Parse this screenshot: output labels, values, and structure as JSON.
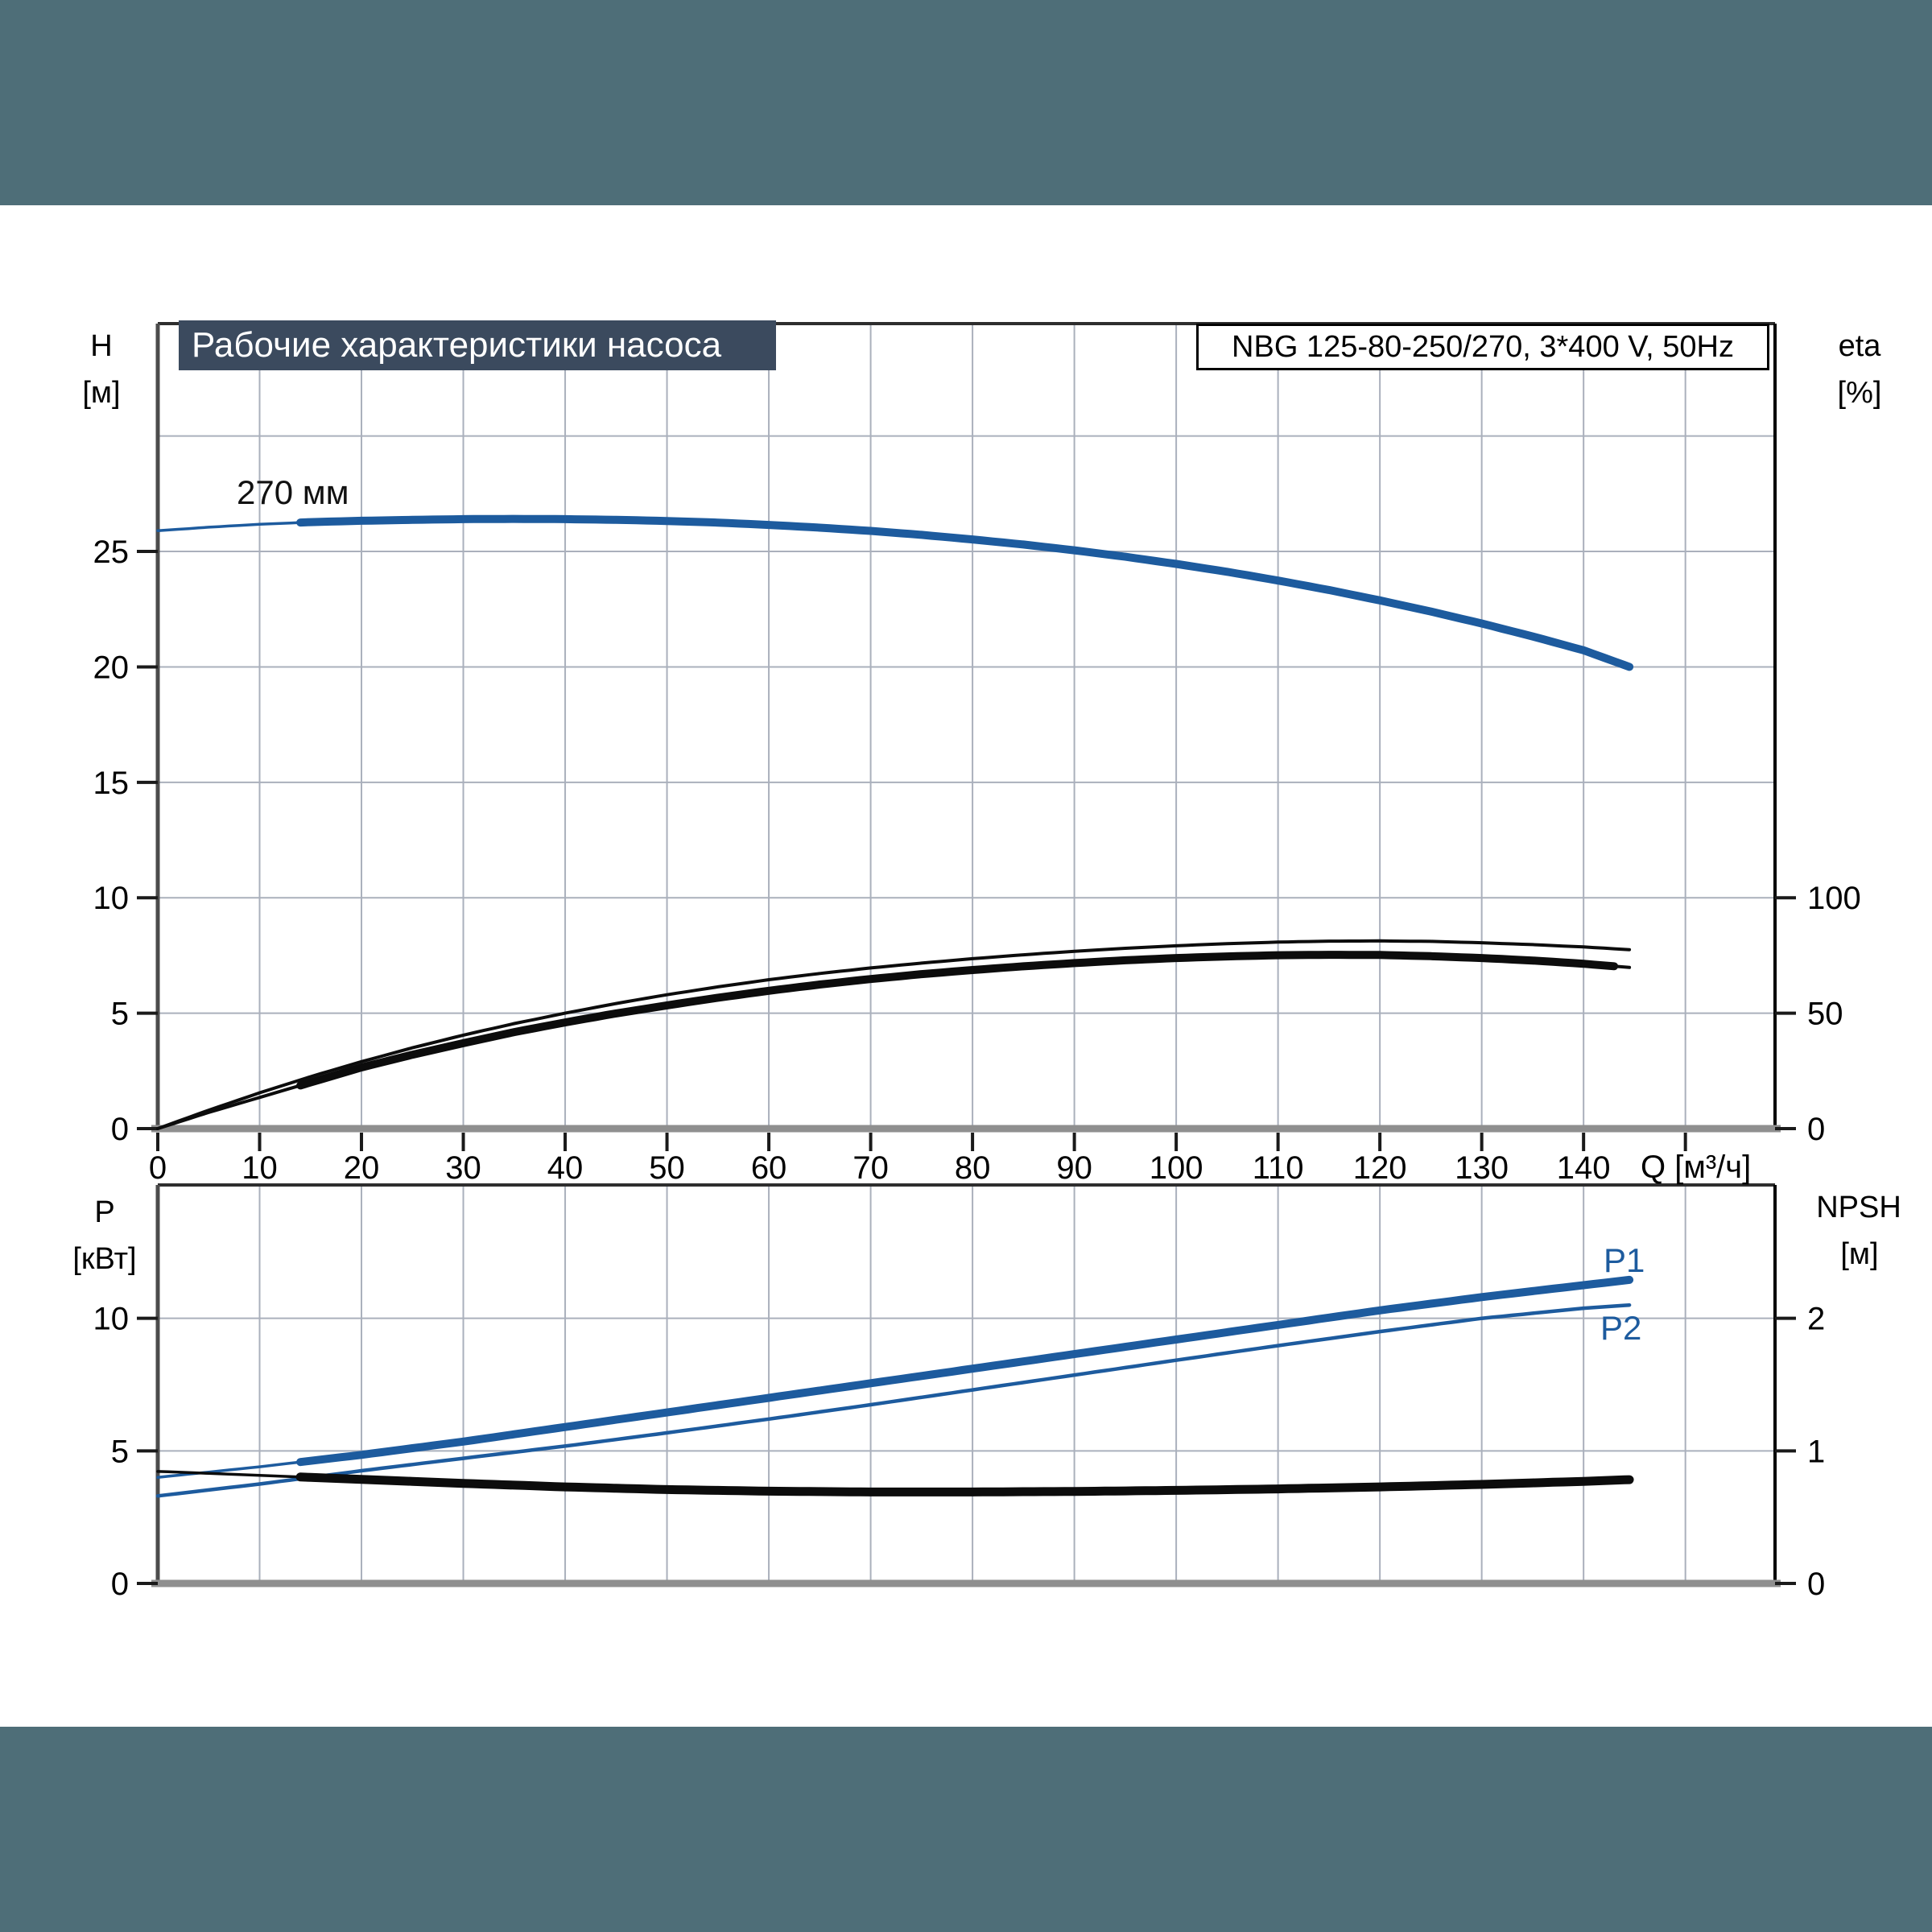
{
  "title_bar": {
    "text": "Рабочие характеристики насоса"
  },
  "pump_box": {
    "text": "NBG 125-80-250/270, 3*400 V, 50Hz"
  },
  "colors": {
    "curve_blue": "#1d5b9e",
    "curve_black": "#0c0c0c",
    "grid": "#aab0bc",
    "teal_bar": "#4e6e78",
    "title_bg": "#3b4a5e"
  },
  "chart_data": [
    {
      "type": "line",
      "title": "Pump head and efficiency vs flow",
      "x_axis": {
        "label": "Q [м³/ч]",
        "tick_labels": [
          0,
          10,
          20,
          30,
          40,
          50,
          60,
          70,
          80,
          90,
          100,
          110,
          120,
          130,
          140
        ],
        "tick_marks": [
          0,
          10,
          20,
          30,
          40,
          50,
          60,
          70,
          80,
          90,
          100,
          110,
          120,
          130,
          140,
          150
        ],
        "grid": [
          10,
          20,
          30,
          40,
          50,
          60,
          70,
          80,
          90,
          100,
          110,
          120,
          130,
          140,
          150
        ],
        "max_displayed": 158.8,
        "show_labels": true
      },
      "y_left": {
        "label": "H",
        "unit": "[м]",
        "tick_labels": [
          0,
          5,
          10,
          15,
          20,
          25
        ],
        "grid": [
          5,
          10,
          15,
          20,
          25,
          30
        ],
        "max_displayed": 34.87
      },
      "y_right": {
        "label": "eta",
        "unit": "[%]",
        "tick_labels": [
          0,
          50,
          100
        ],
        "max_displayed": 348.7
      },
      "annotations": [
        {
          "text": "270 мм"
        }
      ],
      "series": [
        {
          "name": "H 270 мм",
          "axis": "left",
          "color": "#1d5b9e",
          "width_thin": 3.5,
          "width_thick": 10,
          "thick_range": [
            13.5,
            144.5
          ],
          "points": [
            [
              0,
              25.9
            ],
            [
              5,
              26.05
            ],
            [
              10,
              26.18
            ],
            [
              15,
              26.27
            ],
            [
              20,
              26.33
            ],
            [
              25,
              26.37
            ],
            [
              30,
              26.4
            ],
            [
              35,
              26.41
            ],
            [
              40,
              26.4
            ],
            [
              45,
              26.37
            ],
            [
              50,
              26.32
            ],
            [
              55,
              26.25
            ],
            [
              60,
              26.15
            ],
            [
              65,
              26.03
            ],
            [
              70,
              25.89
            ],
            [
              75,
              25.72
            ],
            [
              80,
              25.52
            ],
            [
              85,
              25.3
            ],
            [
              90,
              25.05
            ],
            [
              95,
              24.77
            ],
            [
              100,
              24.46
            ],
            [
              105,
              24.12
            ],
            [
              110,
              23.74
            ],
            [
              115,
              23.33
            ],
            [
              120,
              22.88
            ],
            [
              125,
              22.4
            ],
            [
              130,
              21.88
            ],
            [
              135,
              21.32
            ],
            [
              140,
              20.72
            ],
            [
              144.5,
              20.0
            ]
          ]
        },
        {
          "name": "eta upper",
          "axis": "right",
          "color": "#0c0c0c",
          "width_thin": 4,
          "width_thick": 4,
          "points": [
            [
              0,
              0
            ],
            [
              5,
              8
            ],
            [
              10,
              15.5
            ],
            [
              15,
              22.5
            ],
            [
              20,
              29
            ],
            [
              25,
              35
            ],
            [
              30,
              40.5
            ],
            [
              35,
              45.5
            ],
            [
              40,
              50
            ],
            [
              45,
              54.2
            ],
            [
              50,
              58
            ],
            [
              55,
              61.4
            ],
            [
              60,
              64.5
            ],
            [
              65,
              67.2
            ],
            [
              70,
              69.6
            ],
            [
              75,
              71.7
            ],
            [
              80,
              73.6
            ],
            [
              85,
              75.3
            ],
            [
              90,
              76.8
            ],
            [
              95,
              78.1
            ],
            [
              100,
              79.2
            ],
            [
              105,
              80.1
            ],
            [
              110,
              80.8
            ],
            [
              115,
              81.2
            ],
            [
              120,
              81.3
            ],
            [
              125,
              81.1
            ],
            [
              130,
              80.5
            ],
            [
              135,
              79.7
            ],
            [
              140,
              78.7
            ],
            [
              144.5,
              77.5
            ]
          ]
        },
        {
          "name": "eta lower",
          "axis": "right",
          "color": "#0c0c0c",
          "width_thin": 4,
          "width_thick": 10,
          "thick_range": [
            14,
            143.5
          ],
          "points": [
            [
              0,
              0
            ],
            [
              5,
              7
            ],
            [
              10,
              13.5
            ],
            [
              15,
              20
            ],
            [
              20,
              26.5
            ],
            [
              25,
              32
            ],
            [
              30,
              37
            ],
            [
              35,
              41.8
            ],
            [
              40,
              46
            ],
            [
              45,
              49.9
            ],
            [
              50,
              53.4
            ],
            [
              55,
              56.7
            ],
            [
              60,
              59.7
            ],
            [
              65,
              62.4
            ],
            [
              70,
              64.8
            ],
            [
              75,
              66.9
            ],
            [
              80,
              68.7
            ],
            [
              85,
              70.3
            ],
            [
              90,
              71.7
            ],
            [
              95,
              72.9
            ],
            [
              100,
              73.9
            ],
            [
              105,
              74.6
            ],
            [
              110,
              75.1
            ],
            [
              115,
              75.3
            ],
            [
              120,
              75.2
            ],
            [
              125,
              74.7
            ],
            [
              130,
              73.9
            ],
            [
              135,
              72.8
            ],
            [
              140,
              71.4
            ],
            [
              144.5,
              69.8
            ]
          ]
        }
      ]
    },
    {
      "type": "line",
      "title": "Power and NPSH vs flow",
      "x_axis": {
        "label": "",
        "tick_labels": [],
        "tick_marks": [],
        "grid": [
          10,
          20,
          30,
          40,
          50,
          60,
          70,
          80,
          90,
          100,
          110,
          120,
          130,
          140,
          150
        ],
        "max_displayed": 158.8,
        "show_labels": false
      },
      "y_left": {
        "label": "P",
        "unit": "[кВт]",
        "tick_labels": [
          0,
          5,
          10
        ],
        "grid": [
          5,
          10
        ],
        "max_displayed": 15.03
      },
      "y_right": {
        "label": "NPSH",
        "unit": "[м]",
        "tick_labels": [
          0,
          1,
          2
        ],
        "max_displayed": 3.006
      },
      "annotations": [
        {
          "text": "P1"
        },
        {
          "text": "P2"
        }
      ],
      "series": [
        {
          "name": "P1",
          "axis": "left",
          "color": "#1d5b9e",
          "width_thin": 3.5,
          "width_thick": 10,
          "thick_range": [
            14,
            144.5
          ],
          "points": [
            [
              0,
              4.0
            ],
            [
              10,
              4.4
            ],
            [
              20,
              4.85
            ],
            [
              30,
              5.35
            ],
            [
              40,
              5.9
            ],
            [
              50,
              6.45
            ],
            [
              60,
              7.0
            ],
            [
              70,
              7.55
            ],
            [
              80,
              8.1
            ],
            [
              90,
              8.65
            ],
            [
              100,
              9.2
            ],
            [
              110,
              9.75
            ],
            [
              120,
              10.3
            ],
            [
              130,
              10.8
            ],
            [
              140,
              11.25
            ],
            [
              144.5,
              11.45
            ]
          ]
        },
        {
          "name": "P2",
          "axis": "left",
          "color": "#1d5b9e",
          "width_thin": 4.5,
          "width_thick": 4.5,
          "points": [
            [
              0,
              3.3
            ],
            [
              10,
              3.75
            ],
            [
              20,
              4.25
            ],
            [
              30,
              4.72
            ],
            [
              40,
              5.18
            ],
            [
              50,
              5.68
            ],
            [
              60,
              6.2
            ],
            [
              70,
              6.74
            ],
            [
              80,
              7.3
            ],
            [
              90,
              7.86
            ],
            [
              100,
              8.42
            ],
            [
              110,
              8.97
            ],
            [
              120,
              9.5
            ],
            [
              130,
              10.0
            ],
            [
              140,
              10.38
            ],
            [
              144.5,
              10.5
            ]
          ]
        },
        {
          "name": "NPSH",
          "axis": "right",
          "color": "#0c0c0c",
          "width_thin": 3.5,
          "width_thick": 11,
          "thick_range": [
            14,
            144.5
          ],
          "points": [
            [
              0,
              0.845
            ],
            [
              10,
              0.815
            ],
            [
              20,
              0.785
            ],
            [
              30,
              0.755
            ],
            [
              40,
              0.728
            ],
            [
              50,
              0.708
            ],
            [
              60,
              0.696
            ],
            [
              70,
              0.69
            ],
            [
              80,
              0.69
            ],
            [
              90,
              0.694
            ],
            [
              100,
              0.702
            ],
            [
              110,
              0.713
            ],
            [
              120,
              0.728
            ],
            [
              130,
              0.747
            ],
            [
              140,
              0.77
            ],
            [
              144.5,
              0.783
            ]
          ]
        }
      ]
    }
  ]
}
